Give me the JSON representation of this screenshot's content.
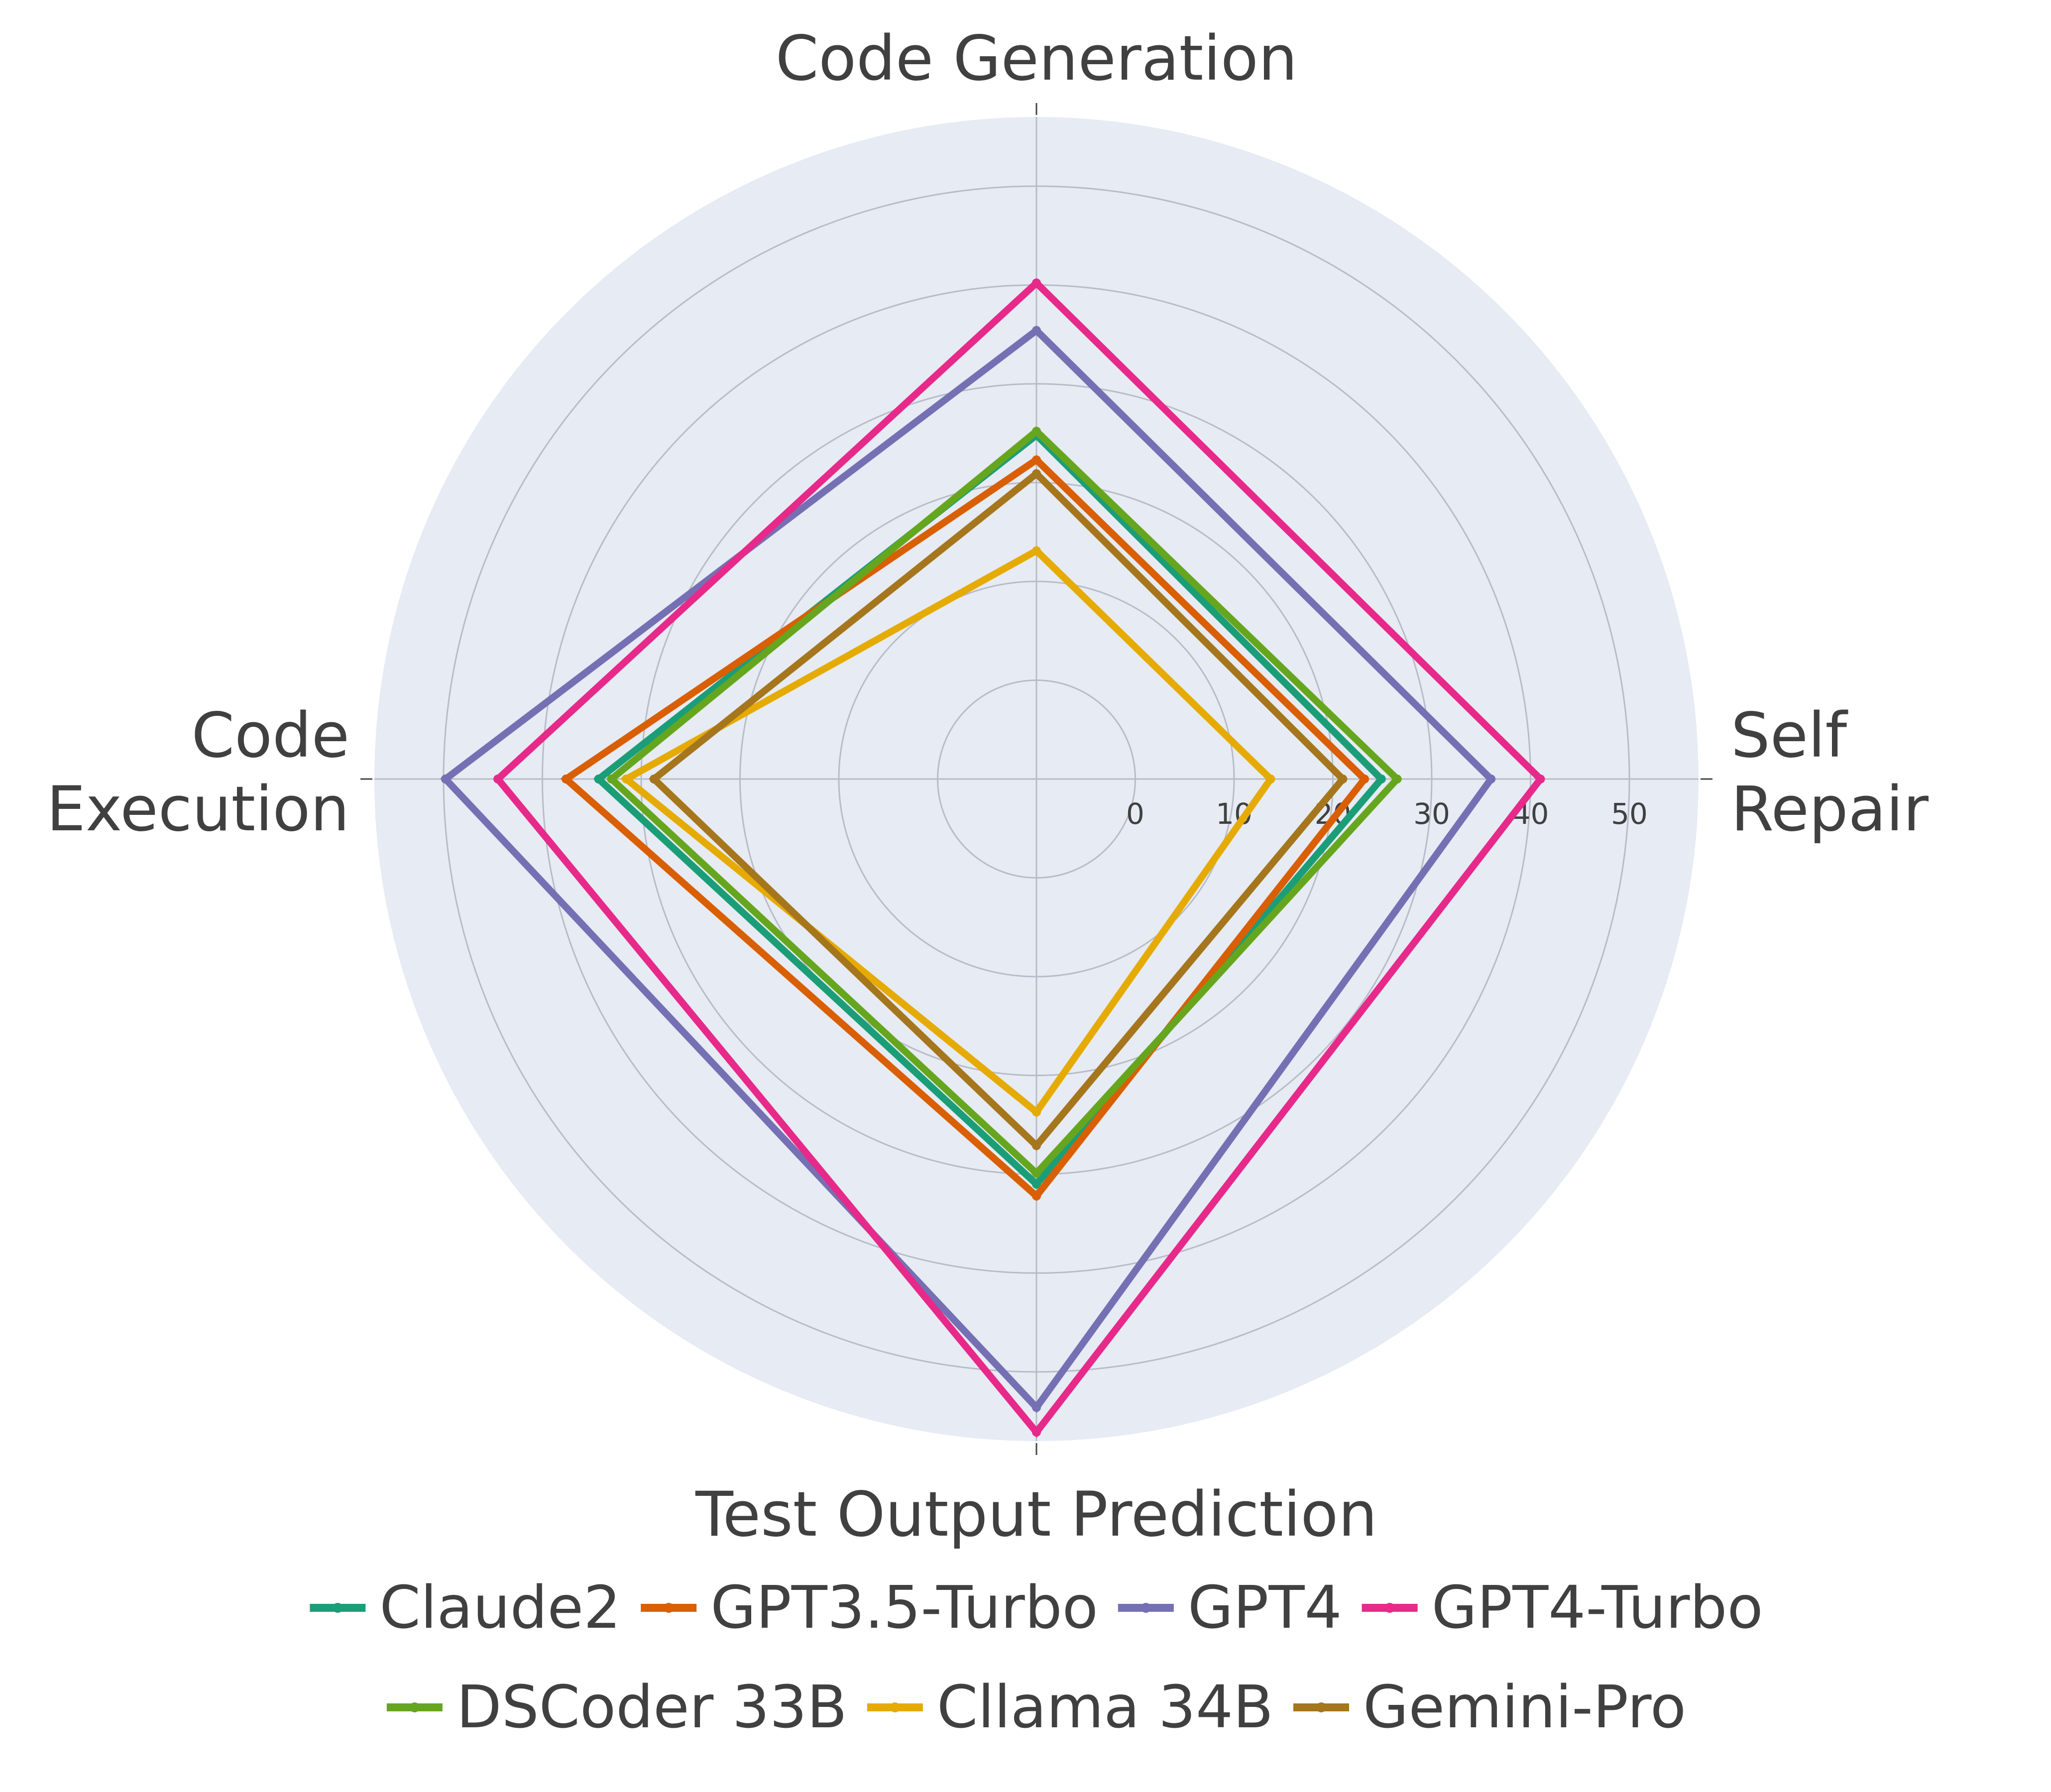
{
  "chart_data": {
    "type": "radar",
    "axes": [
      "Code Generation",
      "Self Repair",
      "Test Output Prediction",
      "Code Execution"
    ],
    "axis_label_lines": [
      [
        "Code Generation"
      ],
      [
        "Self",
        "Repair"
      ],
      [
        "Test Output Prediction"
      ],
      [
        "Code",
        "Execution"
      ]
    ],
    "radial_ticks": [
      "0",
      "10",
      "20",
      "30",
      "40",
      "50"
    ],
    "radial_range": [
      -10,
      57
    ],
    "grid": true,
    "legend_position": "bottom",
    "series": [
      {
        "name": "Claude2",
        "color": "#1b9e77",
        "values": [
          24.8,
          24.9,
          31.0,
          34.3
        ]
      },
      {
        "name": "GPT3.5-Turbo",
        "color": "#d95f02",
        "values": [
          22.3,
          23.2,
          32.2,
          37.6
        ]
      },
      {
        "name": "GPT4",
        "color": "#7570b3",
        "values": [
          35.4,
          36.0,
          53.6,
          49.8
        ]
      },
      {
        "name": "GPT4-Turbo",
        "color": "#e7298a",
        "values": [
          40.2,
          41.0,
          56.1,
          44.5
        ]
      },
      {
        "name": "DSCoder 33B",
        "color": "#66a61e",
        "values": [
          25.2,
          26.5,
          29.9,
          33.0
        ]
      },
      {
        "name": "Cllama 34B",
        "color": "#e6ab02",
        "values": [
          13.1,
          13.7,
          23.7,
          31.5
        ]
      },
      {
        "name": "Gemini-Pro",
        "color": "#a6761d",
        "values": [
          20.9,
          21.0,
          27.1,
          28.7
        ]
      }
    ],
    "colors": {
      "background": "#e6ebf4",
      "grid": "#b9bcc8",
      "text": "#404040"
    }
  }
}
